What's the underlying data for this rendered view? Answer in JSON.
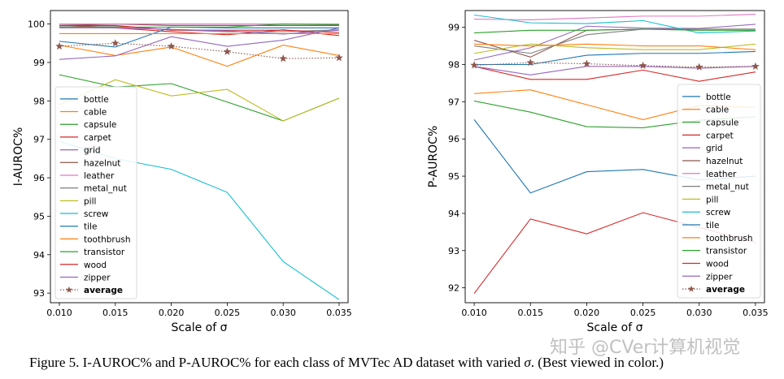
{
  "caption": {
    "prefix": "Figure 5. I-AUROC% and P-AUROC% for each class of MVTec AD dataset with varied ",
    "sigma": "σ",
    "suffix": ". (Best viewed in color.)"
  },
  "watermark": "知乎 @CVer计算机视觉",
  "chart_data": [
    {
      "type": "line",
      "title": "",
      "xlabel": "Scale of σ",
      "ylabel": "I-AUROC%",
      "x": [
        0.01,
        0.015,
        0.02,
        0.025,
        0.03,
        0.035
      ],
      "xticks": [
        "0.010",
        "0.015",
        "0.020",
        "0.025",
        "0.030",
        "0.035"
      ],
      "yticks": [
        93,
        94,
        95,
        96,
        97,
        98,
        99,
        100
      ],
      "ylim": [
        92.75,
        100.35
      ],
      "xlim": [
        0.0092,
        0.0358
      ],
      "legend_loc": "lower left",
      "series": [
        {
          "name": "bottle",
          "color": "#1f77b4",
          "values": [
            100.0,
            100.0,
            100.0,
            100.0,
            100.0,
            100.0
          ]
        },
        {
          "name": "cable",
          "color": "#ff7f0e",
          "values": [
            99.45,
            99.18,
            99.4,
            98.9,
            99.45,
            99.18
          ]
        },
        {
          "name": "capsule",
          "color": "#2ca02c",
          "values": [
            98.68,
            98.36,
            98.45,
            97.97,
            97.48,
            98.07
          ]
        },
        {
          "name": "carpet",
          "color": "#d62728",
          "values": [
            99.96,
            99.9,
            99.8,
            99.72,
            99.85,
            99.7
          ]
        },
        {
          "name": "grid",
          "color": "#9467bd",
          "values": [
            99.08,
            99.17,
            99.67,
            99.42,
            99.58,
            99.9
          ]
        },
        {
          "name": "hazelnut",
          "color": "#8c564b",
          "values": [
            99.96,
            100.0,
            99.96,
            99.96,
            99.96,
            99.96
          ]
        },
        {
          "name": "leather",
          "color": "#e377c2",
          "values": [
            100.0,
            100.0,
            100.0,
            100.0,
            100.0,
            100.0
          ]
        },
        {
          "name": "metal_nut",
          "color": "#7f7f7f",
          "values": [
            99.95,
            99.95,
            99.85,
            99.8,
            99.8,
            99.85
          ]
        },
        {
          "name": "pill",
          "color": "#bcbd22",
          "values": [
            97.9,
            98.55,
            98.13,
            98.3,
            97.48,
            98.07
          ]
        },
        {
          "name": "screw",
          "color": "#17becf",
          "values": [
            96.95,
            96.5,
            96.22,
            95.62,
            93.82,
            92.83
          ]
        },
        {
          "name": "tile",
          "color": "#1f77b4",
          "values": [
            99.55,
            99.4,
            99.92,
            99.9,
            99.9,
            99.9
          ]
        },
        {
          "name": "toothbrush",
          "color": "#ff7f0e",
          "values": [
            99.75,
            99.75,
            99.75,
            99.75,
            99.75,
            99.75
          ]
        },
        {
          "name": "transistor",
          "color": "#2ca02c",
          "values": [
            99.92,
            99.92,
            99.92,
            99.92,
            100.0,
            99.98
          ]
        },
        {
          "name": "wood",
          "color": "#d62728",
          "values": [
            99.96,
            99.96,
            99.84,
            99.84,
            99.84,
            99.78
          ]
        },
        {
          "name": "zipper",
          "color": "#9467bd",
          "values": [
            99.9,
            99.9,
            99.86,
            99.82,
            99.74,
            99.84
          ]
        },
        {
          "name": "average",
          "color": "#8c564b",
          "dashed": true,
          "marker": "star",
          "values": [
            99.42,
            99.5,
            99.42,
            99.28,
            99.1,
            99.12
          ]
        }
      ]
    },
    {
      "type": "line",
      "title": "",
      "xlabel": "Scale of σ",
      "ylabel": "P-AUROC%",
      "x": [
        0.01,
        0.015,
        0.02,
        0.025,
        0.03,
        0.035
      ],
      "xticks": [
        "0.010",
        "0.015",
        "0.020",
        "0.025",
        "0.030",
        "0.035"
      ],
      "yticks": [
        92,
        93,
        94,
        95,
        96,
        97,
        98,
        99
      ],
      "ylim": [
        91.6,
        99.45
      ],
      "xlim": [
        0.0092,
        0.0358
      ],
      "legend_loc": "lower right",
      "series": [
        {
          "name": "bottle",
          "color": "#1f77b4",
          "values": [
            98.0,
            98.0,
            98.25,
            98.3,
            98.3,
            98.35
          ]
        },
        {
          "name": "cable",
          "color": "#ff7f0e",
          "values": [
            97.22,
            97.32,
            96.92,
            96.52,
            96.9,
            96.85
          ]
        },
        {
          "name": "capsule",
          "color": "#2ca02c",
          "values": [
            97.02,
            96.72,
            96.33,
            96.3,
            96.5,
            96.6
          ]
        },
        {
          "name": "carpet",
          "color": "#d62728",
          "values": [
            97.95,
            97.6,
            97.6,
            97.85,
            97.55,
            97.8
          ]
        },
        {
          "name": "grid",
          "color": "#9467bd",
          "values": [
            98.12,
            98.45,
            99.03,
            98.98,
            98.97,
            99.08
          ]
        },
        {
          "name": "hazelnut",
          "color": "#8c564b",
          "values": [
            98.65,
            98.2,
            98.92,
            98.95,
            98.95,
            98.95
          ]
        },
        {
          "name": "leather",
          "color": "#e377c2",
          "values": [
            99.22,
            99.2,
            99.25,
            99.3,
            99.3,
            99.35
          ]
        },
        {
          "name": "metal_nut",
          "color": "#7f7f7f",
          "values": [
            98.5,
            98.3,
            98.8,
            98.95,
            98.95,
            98.95
          ]
        },
        {
          "name": "pill",
          "color": "#bcbd22",
          "values": [
            98.3,
            98.55,
            98.45,
            98.4,
            98.4,
            98.55
          ]
        },
        {
          "name": "screw",
          "color": "#17becf",
          "values": [
            99.33,
            99.12,
            99.1,
            99.18,
            98.85,
            98.9
          ]
        },
        {
          "name": "tile",
          "color": "#1f77b4",
          "values": [
            96.52,
            94.55,
            95.12,
            95.18,
            94.9,
            95.0
          ]
        },
        {
          "name": "toothbrush",
          "color": "#ff7f0e",
          "values": [
            98.55,
            98.5,
            98.55,
            98.5,
            98.5,
            98.4
          ]
        },
        {
          "name": "transistor",
          "color": "#2ca02c",
          "values": [
            98.85,
            98.92,
            98.92,
            98.95,
            98.92,
            98.92
          ]
        },
        {
          "name": "wood",
          "color": "#d62728",
          "values": [
            91.85,
            93.85,
            93.45,
            94.02,
            93.62,
            93.22
          ]
        },
        {
          "name": "zipper",
          "color": "#9467bd",
          "values": [
            97.95,
            97.72,
            97.95,
            97.95,
            97.9,
            97.95
          ]
        },
        {
          "name": "average",
          "color": "#8c564b",
          "dashed": true,
          "marker": "star",
          "values": [
            97.98,
            98.05,
            98.02,
            97.97,
            97.93,
            97.95
          ]
        }
      ]
    }
  ]
}
